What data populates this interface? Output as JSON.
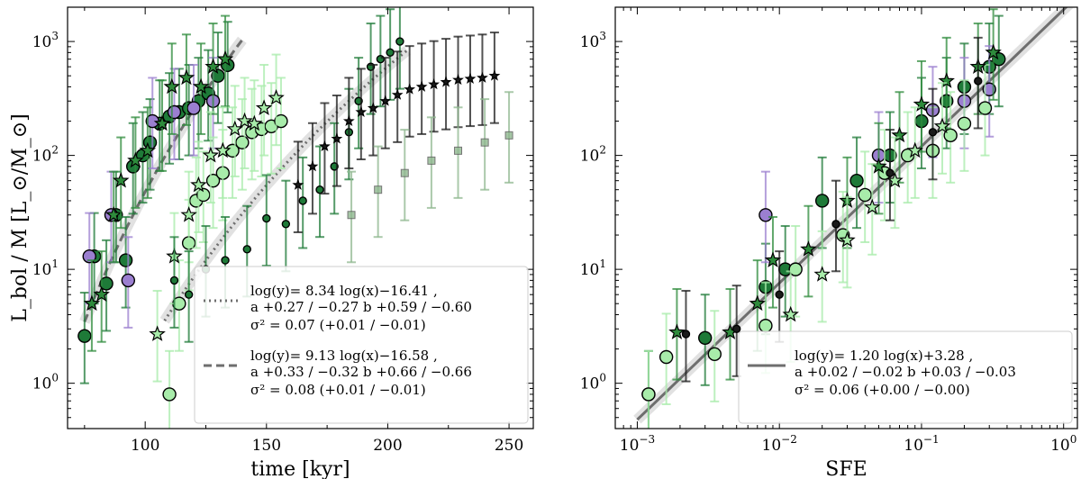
{
  "chart_data": [
    {
      "type": "scatter",
      "panel": "left",
      "xlabel": "time [kyr]",
      "ylabel": "L_bol / M [L_⊙/M_⊙]",
      "x_scale": "linear",
      "y_scale": "log",
      "xlim": [
        68,
        260
      ],
      "ylim": [
        0.4,
        2000
      ],
      "x_ticks": [
        {
          "v": 100,
          "label": "100"
        },
        {
          "v": 150,
          "label": "150"
        },
        {
          "v": 200,
          "label": "200"
        },
        {
          "v": 250,
          "label": "250"
        }
      ],
      "y_ticks": [
        {
          "v": 1,
          "label": "10",
          "exp": "0"
        },
        {
          "v": 10,
          "label": "10",
          "exp": "1"
        },
        {
          "v": 100,
          "label": "10",
          "exp": "2"
        },
        {
          "v": 1000,
          "label": "10",
          "exp": "3"
        }
      ],
      "legend_position": "bottom-right",
      "fits": [
        {
          "name": "dotted",
          "style": "dotted",
          "a": 8.34,
          "b": -16.41,
          "x_range": [
            108,
            208
          ],
          "label": "log(y)= 8.34 log(x)−16.41 ,",
          "a_err": "+0.27 / −0.27",
          "b_err": "+0.59 / −0.60",
          "sigma2": "σ² = 0.07",
          "sigma2_err": "+0.01 / −0.01"
        },
        {
          "name": "dashed",
          "style": "dashed",
          "a": 9.13,
          "b": -16.58,
          "x_range": [
            75,
            140
          ],
          "label": "log(y)= 9.13 log(x)−16.58 ,",
          "a_err": "+0.33 / −0.32",
          "b_err": "+0.66 / −0.66",
          "sigma2": "σ² = 0.08",
          "sigma2_err": "+0.01 / −0.01"
        }
      ],
      "series": [
        {
          "name": "early-circles",
          "marker": "circle",
          "color": "#1e7a38",
          "points": [
            [
              75,
              2.6
            ],
            [
              79,
              13
            ],
            [
              84,
              7.5
            ],
            [
              88,
              30
            ],
            [
              92,
              12
            ],
            [
              95,
              80
            ],
            [
              99,
              100
            ],
            [
              102,
              130
            ],
            [
              106,
              190
            ],
            [
              110,
              220
            ],
            [
              114,
              240
            ],
            [
              118,
              260
            ],
            [
              122,
              300
            ],
            [
              126,
              350
            ],
            [
              130,
              500
            ],
            [
              134,
              620
            ]
          ]
        },
        {
          "name": "early-purple",
          "marker": "circle",
          "color": "#9b7fd0",
          "points": [
            [
              77,
              13
            ],
            [
              86,
              30
            ],
            [
              93,
              8
            ],
            [
              103,
              200
            ],
            [
              112,
              240
            ],
            [
              120,
              260
            ],
            [
              128,
              300
            ]
          ]
        },
        {
          "name": "early-stars",
          "marker": "star",
          "color": "#2e8b3c",
          "points": [
            [
              78,
              5
            ],
            [
              82,
              6
            ],
            [
              87,
              30
            ],
            [
              90,
              60
            ],
            [
              96,
              90
            ],
            [
              101,
              110
            ],
            [
              107,
              190
            ],
            [
              111,
              400
            ],
            [
              117,
              480
            ],
            [
              123,
              400
            ],
            [
              128,
              600
            ],
            [
              133,
              700
            ]
          ]
        },
        {
          "name": "late-light-circles",
          "marker": "circle",
          "color": "#a8ecaa",
          "points": [
            [
              110,
              0.8
            ],
            [
              114,
              5
            ],
            [
              118,
              17
            ],
            [
              121,
              40
            ],
            [
              124,
              45
            ],
            [
              128,
              60
            ],
            [
              132,
              70
            ],
            [
              136,
              110
            ],
            [
              140,
              130
            ],
            [
              144,
              160
            ],
            [
              148,
              170
            ],
            [
              152,
              180
            ],
            [
              156,
              200
            ]
          ]
        },
        {
          "name": "late-light-stars",
          "marker": "star",
          "color": "#a8ecaa",
          "points": [
            [
              105,
              2.7
            ],
            [
              112,
              13
            ],
            [
              118,
              30
            ],
            [
              122,
              55
            ],
            [
              127,
              100
            ],
            [
              132,
              110
            ],
            [
              137,
              170
            ],
            [
              141,
              200
            ],
            [
              145,
              190
            ],
            [
              149,
              260
            ],
            [
              154,
              320
            ]
          ]
        },
        {
          "name": "late-small-dark",
          "marker": "circle",
          "color": "#1e7a38",
          "points": [
            [
              112,
              8
            ],
            [
              118,
              6
            ],
            [
              125,
              10
            ],
            [
              133,
              12
            ],
            [
              142,
              15
            ],
            [
              150,
              28
            ],
            [
              158,
              25
            ],
            [
              165,
              40
            ],
            [
              172,
              50
            ],
            [
              178,
              80
            ],
            [
              184,
              160
            ],
            [
              188,
              300
            ],
            [
              193,
              600
            ],
            [
              197,
              700
            ],
            [
              201,
              800
            ],
            [
              205,
              1000
            ]
          ]
        },
        {
          "name": "late-small-stars",
          "marker": "star",
          "color": "#1a1a1a",
          "points": [
            [
              163,
              55
            ],
            [
              169,
              80
            ],
            [
              174,
              120
            ],
            [
              179,
              140
            ],
            [
              184,
              200
            ],
            [
              189,
              240
            ],
            [
              194,
              260
            ],
            [
              199,
              300
            ],
            [
              204,
              340
            ],
            [
              209,
              380
            ],
            [
              214,
              400
            ],
            [
              219,
              420
            ],
            [
              224,
              440
            ],
            [
              229,
              460
            ],
            [
              234,
              470
            ],
            [
              239,
              480
            ],
            [
              244,
              500
            ]
          ]
        },
        {
          "name": "late-grey-squares",
          "marker": "square",
          "color": "#8fb88f",
          "points": [
            [
              185,
              30
            ],
            [
              196,
              50
            ],
            [
              207,
              70
            ],
            [
              218,
              90
            ],
            [
              229,
              110
            ],
            [
              240,
              130
            ],
            [
              250,
              150
            ]
          ]
        }
      ]
    },
    {
      "type": "scatter",
      "panel": "right",
      "xlabel": "SFE",
      "x_scale": "log",
      "y_scale": "log",
      "xlim": [
        0.0007,
        1.25
      ],
      "ylim": [
        0.4,
        2000
      ],
      "x_ticks": [
        {
          "v": 0.001,
          "label": "10",
          "exp": "−3"
        },
        {
          "v": 0.01,
          "label": "10",
          "exp": "−2"
        },
        {
          "v": 0.1,
          "label": "10",
          "exp": "−1"
        },
        {
          "v": 1,
          "label": "10",
          "exp": "0"
        }
      ],
      "y_ticks": [
        {
          "v": 1,
          "label": "10",
          "exp": "0"
        },
        {
          "v": 10,
          "label": "10",
          "exp": "1"
        },
        {
          "v": 100,
          "label": "10",
          "exp": "2"
        },
        {
          "v": 1000,
          "label": "10",
          "exp": "3"
        }
      ],
      "legend_position": "bottom-right",
      "fits": [
        {
          "name": "solid",
          "style": "solid",
          "a": 1.2,
          "b": 3.28,
          "x_range": [
            0.001,
            1.2
          ],
          "label": "log(y)= 1.20 log(x)+3.28 ,",
          "a_err": "+0.02 / −0.02",
          "b_err": "+0.03 / −0.03",
          "sigma2": "σ² = 0.06",
          "sigma2_err": "+0.00 / −0.00"
        }
      ],
      "series": [
        {
          "name": "dark-circles",
          "marker": "circle",
          "color": "#1e7a38",
          "points": [
            [
              0.0012,
              0.8
            ],
            [
              0.003,
              2.5
            ],
            [
              0.008,
              7
            ],
            [
              0.011,
              10
            ],
            [
              0.02,
              40
            ],
            [
              0.035,
              60
            ],
            [
              0.06,
              100
            ],
            [
              0.1,
              200
            ],
            [
              0.15,
              300
            ],
            [
              0.2,
              400
            ],
            [
              0.3,
              600
            ],
            [
              0.35,
              700
            ]
          ]
        },
        {
          "name": "purple-circles",
          "marker": "circle",
          "color": "#9b7fd0",
          "points": [
            [
              0.008,
              30
            ],
            [
              0.05,
              100
            ],
            [
              0.12,
              250
            ],
            [
              0.2,
              300
            ],
            [
              0.3,
              380
            ]
          ]
        },
        {
          "name": "light-circles",
          "marker": "circle",
          "color": "#a8ecaa",
          "points": [
            [
              0.0012,
              0.8
            ],
            [
              0.0016,
              1.7
            ],
            [
              0.0035,
              1.8
            ],
            [
              0.008,
              3.2
            ],
            [
              0.013,
              10
            ],
            [
              0.028,
              20
            ],
            [
              0.04,
              45
            ],
            [
              0.055,
              70
            ],
            [
              0.08,
              100
            ],
            [
              0.12,
              110
            ],
            [
              0.16,
              150
            ],
            [
              0.2,
              190
            ],
            [
              0.28,
              260
            ]
          ]
        },
        {
          "name": "stars",
          "marker": "star",
          "color": "#2e8b3c",
          "points": [
            [
              0.0019,
              2.8
            ],
            [
              0.0045,
              2.8
            ],
            [
              0.007,
              5
            ],
            [
              0.009,
              12
            ],
            [
              0.016,
              15
            ],
            [
              0.03,
              40
            ],
            [
              0.05,
              80
            ],
            [
              0.07,
              150
            ],
            [
              0.1,
              280
            ],
            [
              0.15,
              450
            ],
            [
              0.25,
              600
            ],
            [
              0.32,
              800
            ]
          ]
        },
        {
          "name": "light-stars",
          "marker": "star",
          "color": "#a8ecaa",
          "points": [
            [
              0.012,
              4
            ],
            [
              0.02,
              9
            ],
            [
              0.03,
              18
            ],
            [
              0.045,
              35
            ],
            [
              0.065,
              60
            ],
            [
              0.09,
              110
            ],
            [
              0.14,
              180
            ]
          ]
        },
        {
          "name": "small-dark",
          "marker": "circle",
          "color": "#1a1a1a",
          "points": [
            [
              0.0022,
              2.7
            ],
            [
              0.005,
              3
            ],
            [
              0.01,
              6
            ],
            [
              0.025,
              25
            ],
            [
              0.06,
              70
            ],
            [
              0.12,
              160
            ],
            [
              0.25,
              450
            ]
          ]
        }
      ]
    }
  ]
}
